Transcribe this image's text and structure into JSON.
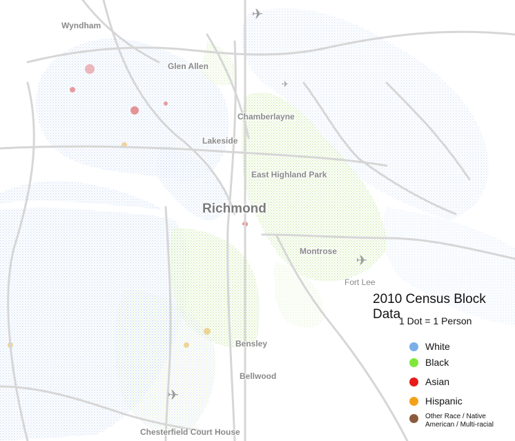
{
  "places": [
    {
      "id": "wyndham",
      "label": "Wyndham"
    },
    {
      "id": "glen-allen",
      "label": "Glen Allen"
    },
    {
      "id": "chamberlayne",
      "label": "Chamberlayne"
    },
    {
      "id": "lakeside",
      "label": "Lakeside"
    },
    {
      "id": "east-highland-park",
      "label": "East Highland Park"
    },
    {
      "id": "richmond",
      "label": "Richmond"
    },
    {
      "id": "montrose",
      "label": "Montrose"
    },
    {
      "id": "fort-lee",
      "label": "Fort Lee"
    },
    {
      "id": "bensley",
      "label": "Bensley"
    },
    {
      "id": "bellwood",
      "label": "Bellwood"
    },
    {
      "id": "chesterfield-court-house",
      "label": "Chesterfield Court House"
    }
  ],
  "legend": {
    "title": "2010 Census Block Data",
    "subtitle": "1 Dot = 1 Person",
    "items": [
      {
        "label": "White",
        "color": "#7aaee8"
      },
      {
        "label": "Black",
        "color": "#7ee83a"
      },
      {
        "label": "Asian",
        "color": "#e81a1a"
      },
      {
        "label": "Hispanic",
        "color": "#f2a21a"
      },
      {
        "label": "Other Race / Native American / Multi-racial",
        "color": "#8b5a3c"
      }
    ]
  },
  "colors": {
    "white_dots": "#a9c6ee",
    "black_dots": "#b6e08a",
    "asian_dots": "#d84040",
    "hispanic_dots": "#e8b040",
    "roads": "#d9d9d9",
    "river": "#ffffff"
  },
  "icons": [
    "airport-icon",
    "airport-icon",
    "airport-icon",
    "airport-icon"
  ]
}
